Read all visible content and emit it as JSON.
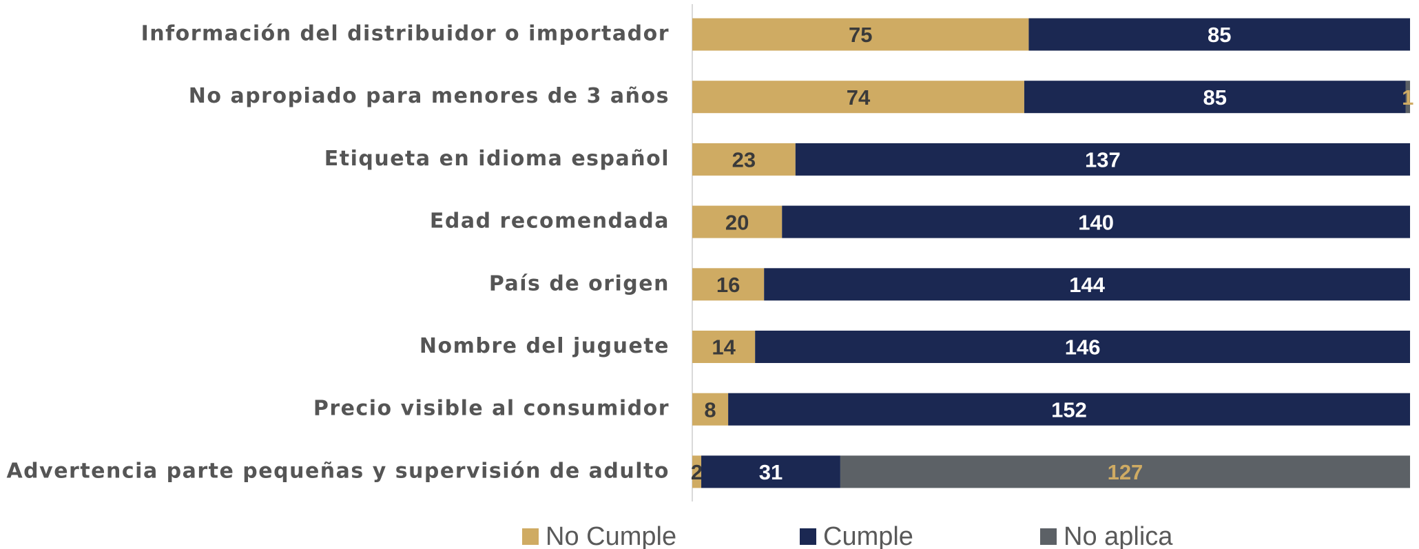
{
  "chart_data": {
    "type": "bar",
    "orientation": "horizontal",
    "stacked": true,
    "categories": [
      "Información del distribuidor o importador",
      "No apropiado para menores de 3 años",
      "Etiqueta en idioma español",
      "Edad recomendada",
      "País de origen",
      "Nombre del juguete",
      "Precio visible al consumidor",
      "Advertencia parte pequeñas y supervisión de adulto"
    ],
    "series": [
      {
        "name": "No Cumple",
        "color": "#cfab63",
        "values": [
          75,
          74,
          23,
          20,
          16,
          14,
          8,
          2
        ]
      },
      {
        "name": "Cumple",
        "color": "#1b2852",
        "values": [
          85,
          85,
          137,
          140,
          144,
          146,
          152,
          31
        ]
      },
      {
        "name": "No aplica",
        "color": "#5c6166",
        "values": [
          0,
          1,
          0,
          0,
          0,
          0,
          0,
          127
        ]
      }
    ],
    "xlim": [
      0,
      160
    ],
    "legend": "bottom"
  }
}
